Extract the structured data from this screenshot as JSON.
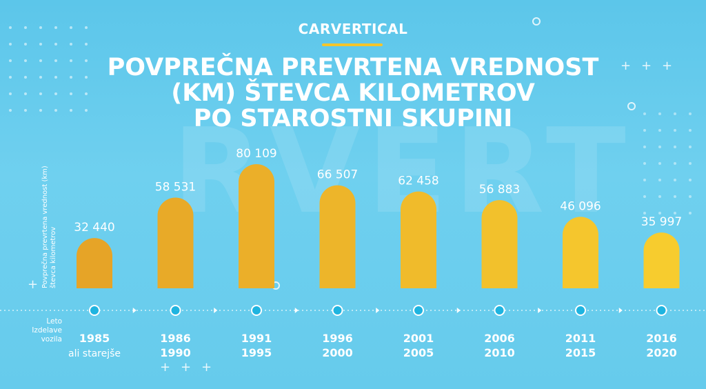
{
  "brand": {
    "logo_text": "CARVERTICAL",
    "accent": "#f5c52b"
  },
  "watermark_text": "RVERT",
  "colors": {
    "background": "#5cc6ea",
    "bar_start": "#e6a427",
    "bar_end": "#f7cc2e",
    "timeline": "#ffffff",
    "node_fill": "#1fb4e0"
  },
  "chart_data": {
    "type": "bar",
    "title": "POVPREČNA PREVRTENA VREDNOST (KM) ŠTEVCA KILOMETROV PO STAROSTNI SKUPINI",
    "title_lines": [
      "POVPREČNA PREVRTENA VREDNOST",
      "(KM) ŠTEVCA KILOMETROV",
      "PO STAROSTNI SKUPINI"
    ],
    "ylabel": "Povprečna prevrtena vrednost (km) števca kilometrov",
    "ylabel_lines": [
      "Povprečna prevrtena vrednost (km)",
      "števca kilometrov"
    ],
    "xlabel": "Leto Izdelave vozila",
    "xlabel_lines": [
      "Leto",
      "Izdelave",
      "vozila"
    ],
    "categories": [
      "1985 ali starejše",
      "1986–1990",
      "1991–1995",
      "1996–2000",
      "2001–2005",
      "2006–2010",
      "2011–2015",
      "2016–2020"
    ],
    "category_lines": [
      [
        "1985",
        "ali starejše"
      ],
      [
        "1986",
        "1990"
      ],
      [
        "1991",
        "1995"
      ],
      [
        "1996",
        "2000"
      ],
      [
        "2001",
        "2005"
      ],
      [
        "2006",
        "2010"
      ],
      [
        "2011",
        "2015"
      ],
      [
        "2016",
        "2020"
      ]
    ],
    "values": [
      32440,
      58531,
      80109,
      66507,
      62458,
      56883,
      46096,
      35997
    ],
    "value_labels": [
      "32 440",
      "58 531",
      "80 109",
      "66 507",
      "62 458",
      "56 883",
      "46 096",
      "35 997"
    ],
    "ylim": [
      0,
      80109
    ],
    "grid": false,
    "legend": "none"
  }
}
